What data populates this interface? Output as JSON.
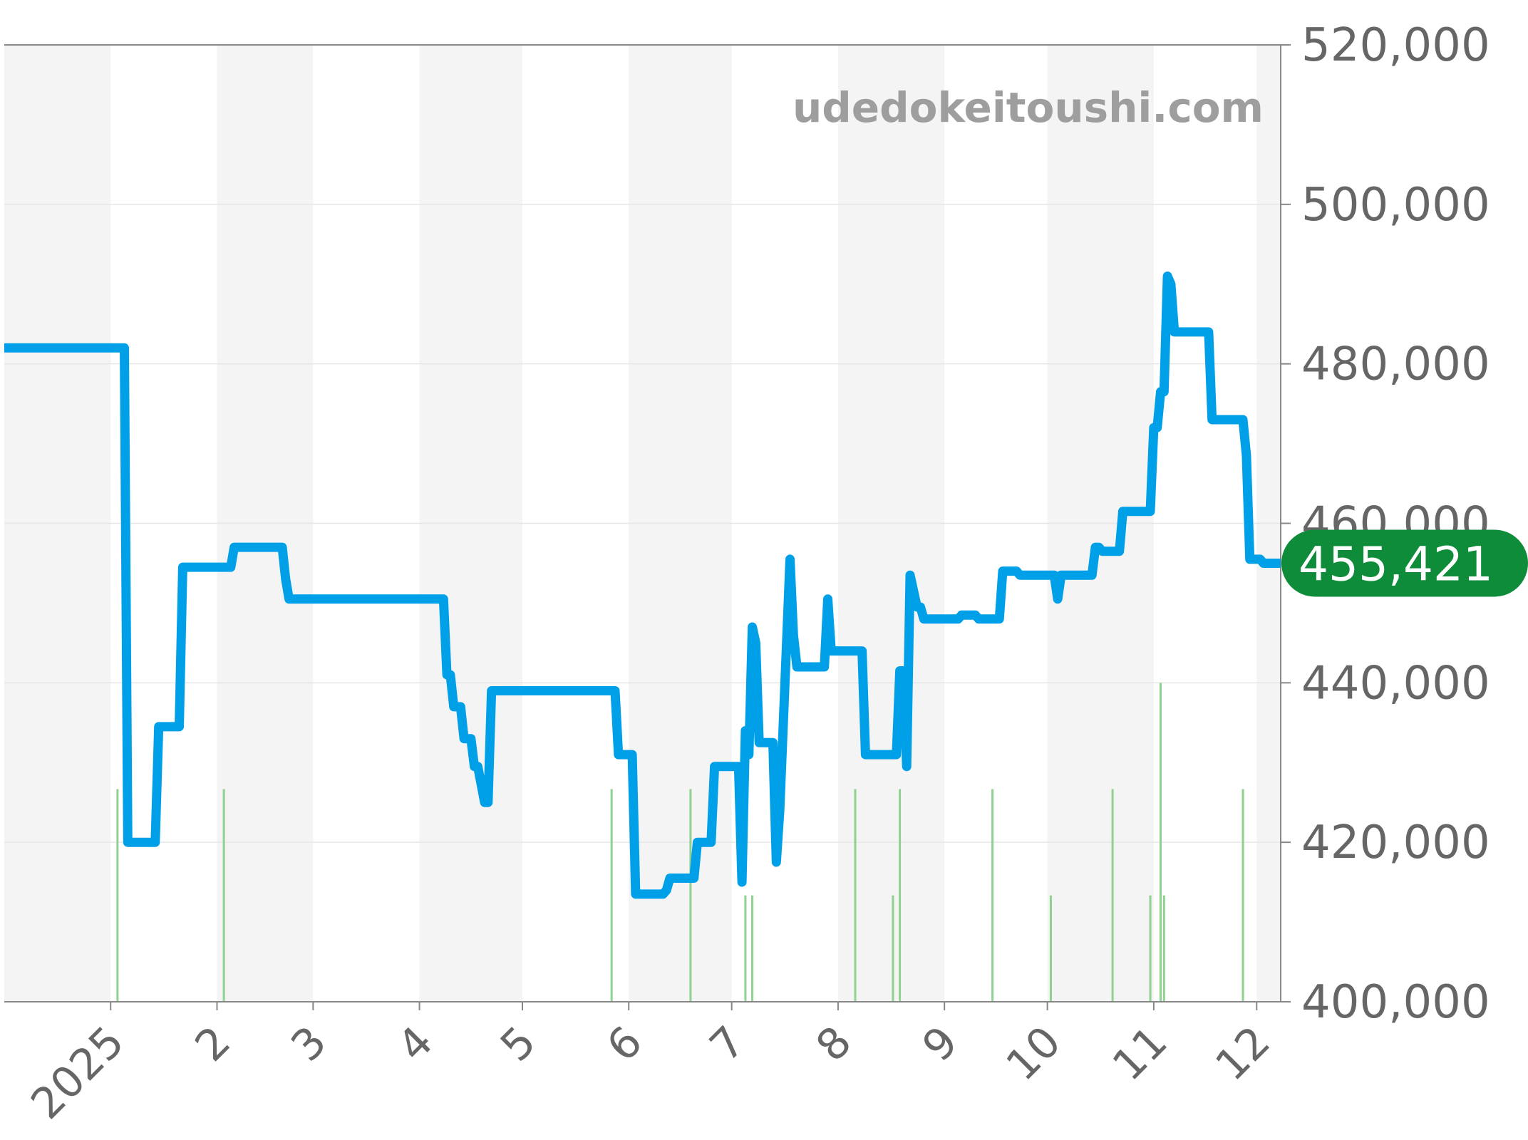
{
  "watermark": "udedokeitoushi.com",
  "current_value_label": "455,421",
  "colors": {
    "price_line": "#00a0e9",
    "volume_bars": "#8fd18f",
    "current_badge": "#0e8c3a",
    "band_shade": "#f4f4f4",
    "grid": "#e6e6e6",
    "axis": "#888888"
  },
  "chart_data": {
    "type": "line",
    "title": "",
    "xlabel": "",
    "ylabel": "",
    "ylim": [
      400000,
      520000
    ],
    "y_ticks": [
      {
        "value": 400000,
        "label": "400,000"
      },
      {
        "value": 420000,
        "label": "420,000"
      },
      {
        "value": 440000,
        "label": "440,000"
      },
      {
        "value": 460000,
        "label": "460,000"
      },
      {
        "value": 480000,
        "label": "480,000"
      },
      {
        "value": 500000,
        "label": "500,000"
      },
      {
        "value": 520000,
        "label": "520,000"
      }
    ],
    "xlim": [
      "2024-12-01",
      "2025-12-08"
    ],
    "x_ticks": [
      {
        "date": "2025-01-01",
        "label": "2025"
      },
      {
        "date": "2025-02-01",
        "label": "2"
      },
      {
        "date": "2025-03-01",
        "label": "3"
      },
      {
        "date": "2025-04-01",
        "label": "4"
      },
      {
        "date": "2025-05-01",
        "label": "5"
      },
      {
        "date": "2025-06-01",
        "label": "6"
      },
      {
        "date": "2025-07-01",
        "label": "7"
      },
      {
        "date": "2025-08-01",
        "label": "8"
      },
      {
        "date": "2025-09-01",
        "label": "9"
      },
      {
        "date": "2025-10-01",
        "label": "10"
      },
      {
        "date": "2025-11-01",
        "label": "11"
      },
      {
        "date": "2025-12-01",
        "label": "12"
      }
    ],
    "shaded_bands": [
      [
        "2024-12-01",
        "2025-01-01"
      ],
      [
        "2025-02-01",
        "2025-03-01"
      ],
      [
        "2025-04-01",
        "2025-05-01"
      ],
      [
        "2025-06-01",
        "2025-07-01"
      ],
      [
        "2025-08-01",
        "2025-09-01"
      ],
      [
        "2025-10-01",
        "2025-11-01"
      ],
      [
        "2025-12-01",
        "2025-12-08"
      ]
    ],
    "grid": true,
    "series": [
      {
        "kind": "price_line",
        "points": [
          [
            "2024-12-01",
            482000
          ],
          [
            "2025-01-05",
            482000
          ],
          [
            "2025-01-06",
            420000
          ],
          [
            "2025-01-14",
            420000
          ],
          [
            "2025-01-15",
            434500
          ],
          [
            "2025-01-21",
            434500
          ],
          [
            "2025-01-22",
            454500
          ],
          [
            "2025-02-05",
            454500
          ],
          [
            "2025-02-06",
            457000
          ],
          [
            "2025-02-20",
            457000
          ],
          [
            "2025-02-21",
            453000
          ],
          [
            "2025-02-22",
            450500
          ],
          [
            "2025-04-08",
            450500
          ],
          [
            "2025-04-09",
            441000
          ],
          [
            "2025-04-10",
            441000
          ],
          [
            "2025-04-11",
            437000
          ],
          [
            "2025-04-13",
            437000
          ],
          [
            "2025-04-14",
            433000
          ],
          [
            "2025-04-16",
            433000
          ],
          [
            "2025-04-17",
            429500
          ],
          [
            "2025-04-18",
            429500
          ],
          [
            "2025-04-20",
            425000
          ],
          [
            "2025-04-21",
            425000
          ],
          [
            "2025-04-22",
            439000
          ],
          [
            "2025-05-28",
            439000
          ],
          [
            "2025-05-29",
            431000
          ],
          [
            "2025-06-02",
            431000
          ],
          [
            "2025-06-03",
            413500
          ],
          [
            "2025-06-11",
            413500
          ],
          [
            "2025-06-12",
            414000
          ],
          [
            "2025-06-13",
            415500
          ],
          [
            "2025-06-20",
            415500
          ],
          [
            "2025-06-21",
            420000
          ],
          [
            "2025-06-25",
            420000
          ],
          [
            "2025-06-26",
            429500
          ],
          [
            "2025-07-03",
            429500
          ],
          [
            "2025-07-04",
            415000
          ],
          [
            "2025-07-05",
            434000
          ],
          [
            "2025-07-06",
            431000
          ],
          [
            "2025-07-07",
            447000
          ],
          [
            "2025-07-08",
            445000
          ],
          [
            "2025-07-09",
            432500
          ],
          [
            "2025-07-13",
            432500
          ],
          [
            "2025-07-14",
            417500
          ],
          [
            "2025-07-15",
            424000
          ],
          [
            "2025-07-18",
            455500
          ],
          [
            "2025-07-19",
            446000
          ],
          [
            "2025-07-20",
            442000
          ],
          [
            "2025-07-28",
            442000
          ],
          [
            "2025-07-29",
            450500
          ],
          [
            "2025-07-30",
            444000
          ],
          [
            "2025-08-08",
            444000
          ],
          [
            "2025-08-09",
            431000
          ],
          [
            "2025-08-18",
            431000
          ],
          [
            "2025-08-19",
            441500
          ],
          [
            "2025-08-20",
            441500
          ],
          [
            "2025-08-21",
            429500
          ],
          [
            "2025-08-22",
            453500
          ],
          [
            "2025-08-24",
            449500
          ],
          [
            "2025-08-25",
            449500
          ],
          [
            "2025-08-26",
            448000
          ],
          [
            "2025-09-05",
            448000
          ],
          [
            "2025-09-06",
            448500
          ],
          [
            "2025-09-10",
            448500
          ],
          [
            "2025-09-11",
            448000
          ],
          [
            "2025-09-17",
            448000
          ],
          [
            "2025-09-18",
            454000
          ],
          [
            "2025-09-22",
            454000
          ],
          [
            "2025-09-23",
            453500
          ],
          [
            "2025-10-03",
            453500
          ],
          [
            "2025-10-04",
            450500
          ],
          [
            "2025-10-05",
            453500
          ],
          [
            "2025-10-14",
            453500
          ],
          [
            "2025-10-15",
            457000
          ],
          [
            "2025-10-16",
            457000
          ],
          [
            "2025-10-17",
            456500
          ],
          [
            "2025-10-22",
            456500
          ],
          [
            "2025-10-23",
            461500
          ],
          [
            "2025-10-31",
            461500
          ],
          [
            "2025-11-01",
            472000
          ],
          [
            "2025-11-02",
            472000
          ],
          [
            "2025-11-03",
            476500
          ],
          [
            "2025-11-04",
            476500
          ],
          [
            "2025-11-05",
            491000
          ],
          [
            "2025-11-06",
            490000
          ],
          [
            "2025-11-07",
            484000
          ],
          [
            "2025-11-17",
            484000
          ],
          [
            "2025-11-18",
            473000
          ],
          [
            "2025-11-27",
            473000
          ],
          [
            "2025-11-28",
            468500
          ],
          [
            "2025-11-29",
            455500
          ],
          [
            "2025-12-02",
            455500
          ],
          [
            "2025-12-03",
            455000
          ],
          [
            "2025-12-08",
            455000
          ]
        ]
      },
      {
        "kind": "volume_bars",
        "bars": [
          [
            "2025-01-03",
            2
          ],
          [
            "2025-02-03",
            2
          ],
          [
            "2025-05-27",
            2
          ],
          [
            "2025-06-19",
            2
          ],
          [
            "2025-07-05",
            1
          ],
          [
            "2025-07-07",
            1
          ],
          [
            "2025-08-06",
            2
          ],
          [
            "2025-08-17",
            1
          ],
          [
            "2025-08-19",
            2
          ],
          [
            "2025-09-15",
            2
          ],
          [
            "2025-10-02",
            1
          ],
          [
            "2025-10-20",
            2
          ],
          [
            "2025-10-31",
            1
          ],
          [
            "2025-11-03",
            3
          ],
          [
            "2025-11-04",
            1
          ],
          [
            "2025-11-27",
            2
          ]
        ]
      }
    ]
  }
}
